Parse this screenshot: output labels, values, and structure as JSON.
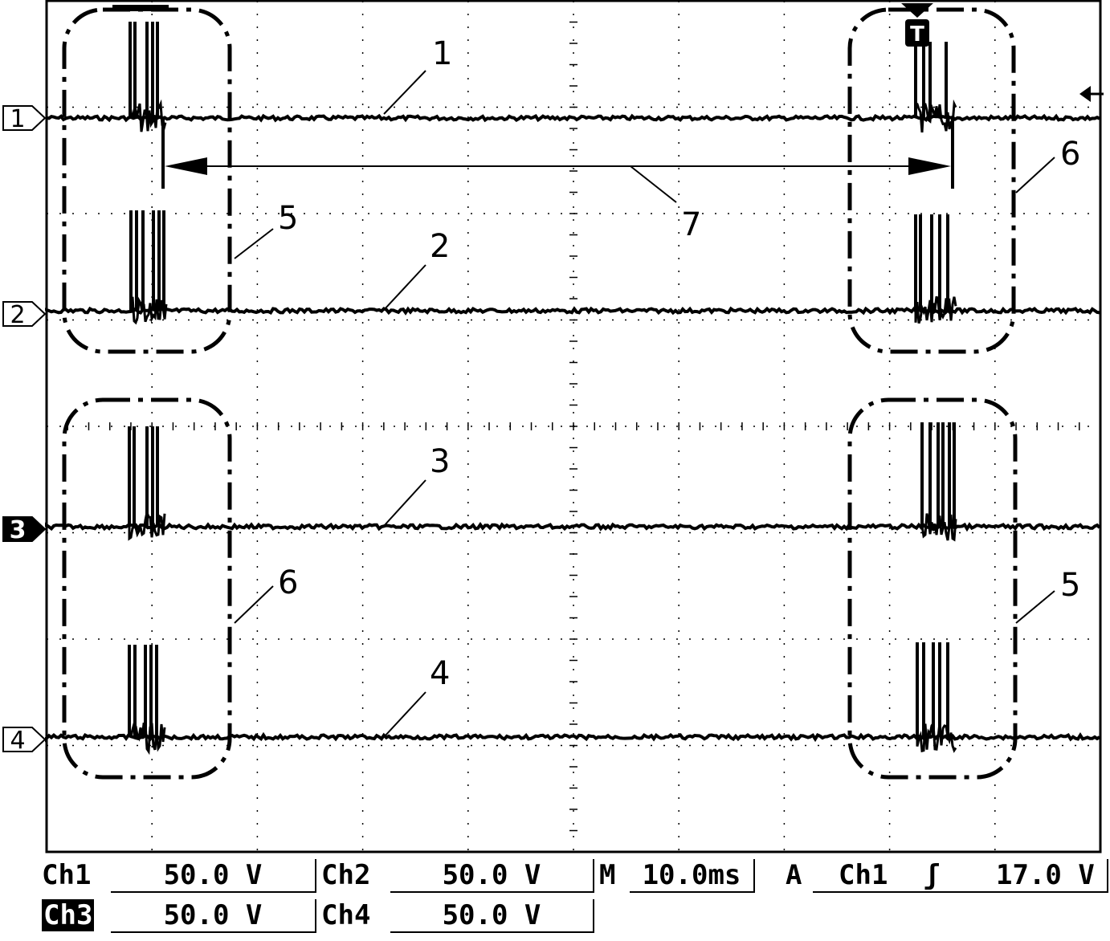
{
  "figure": {
    "channel_markers": [
      "1",
      "2",
      "3",
      "4"
    ],
    "trigger_marker": "T",
    "callouts": {
      "trace1": "1",
      "trace2": "2",
      "trace3": "3",
      "trace4": "4",
      "box_a": "5",
      "box_b": "6",
      "box_c": "6",
      "box_d": "5",
      "interval": "7"
    }
  },
  "status": {
    "ch1_label": "Ch1",
    "ch1_value": "50.0 V",
    "ch2_label": "Ch2",
    "ch2_value": "50.0 V",
    "ch3_label": "Ch3",
    "ch3_value": "50.0 V",
    "ch4_label": "Ch4",
    "ch4_value": "50.0 V",
    "timebase_label": "M",
    "timebase_value": "10.0ms",
    "trigger_mode": "A",
    "trigger_source": "Ch1",
    "trigger_slope": "ʃ",
    "trigger_level": "17.0 V"
  },
  "colors": {
    "ink": "#000000",
    "background": "#ffffff"
  }
}
